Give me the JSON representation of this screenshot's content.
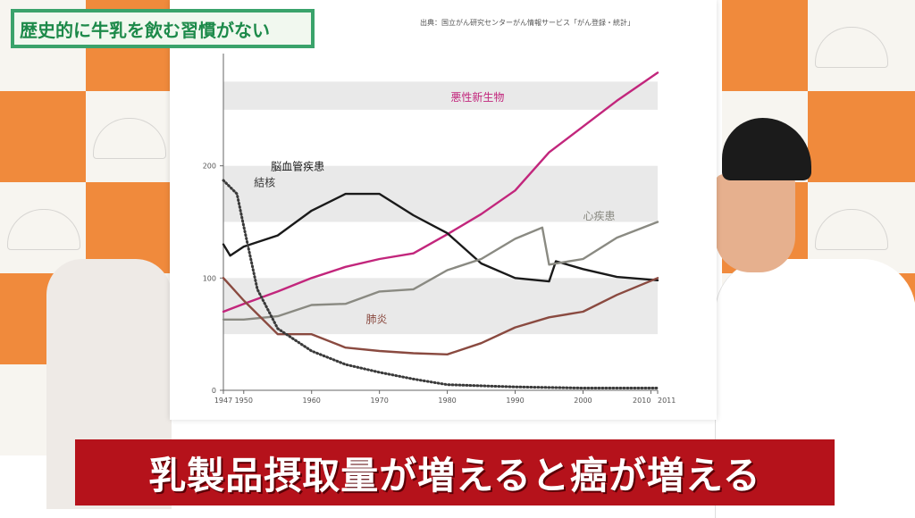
{
  "video": {
    "title_banner": "歴史的に牛乳を飲む習慣がない",
    "source_note": "出典：国立がん研究センターがん情報サービス「がん登録・統計」",
    "caption": "乳製品摂取量が増えると癌が増える"
  },
  "colors": {
    "cancer_line": "#c2267c",
    "cerebrovascular_line": "#1a1a1a",
    "heart_line": "#8a8a82",
    "pneumonia_line": "#8a4a40",
    "tuberculosis_line": "#3a3a3a",
    "band": "#e9e9e9",
    "caption_bg": "#b5121b",
    "title_green": "#1d8a4a"
  },
  "chart_data": {
    "type": "line",
    "title": "",
    "xlabel": "",
    "ylabel": "",
    "xlim": [
      1947,
      2011
    ],
    "ylim": [
      0,
      300
    ],
    "x_ticks": [
      {
        "value": 1947,
        "label": "1947"
      },
      {
        "value": 1950,
        "label": "1950"
      },
      {
        "value": 1960,
        "label": "1960"
      },
      {
        "value": 1970,
        "label": "1970"
      },
      {
        "value": 1980,
        "label": "1980"
      },
      {
        "value": 1990,
        "label": "1990"
      },
      {
        "value": 2000,
        "label": "2000"
      },
      {
        "value": 2010,
        "label": "2010"
      },
      {
        "value": 2011,
        "label": "2011"
      }
    ],
    "y_ticks": [
      {
        "value": 0,
        "label": "0"
      },
      {
        "value": 100,
        "label": "100"
      },
      {
        "value": 200,
        "label": "200"
      }
    ],
    "bands": [
      [
        250,
        275
      ],
      [
        150,
        200
      ],
      [
        50,
        100
      ]
    ],
    "series": [
      {
        "name": "悪性新生物",
        "color_key": "cancer_line",
        "style": "solid",
        "points": [
          [
            1947,
            70
          ],
          [
            1950,
            77
          ],
          [
            1955,
            88
          ],
          [
            1960,
            100
          ],
          [
            1965,
            110
          ],
          [
            1970,
            117
          ],
          [
            1975,
            122
          ],
          [
            1980,
            139
          ],
          [
            1985,
            157
          ],
          [
            1990,
            178
          ],
          [
            1995,
            212
          ],
          [
            2000,
            235
          ],
          [
            2005,
            258
          ],
          [
            2011,
            283
          ]
        ]
      },
      {
        "name": "脳血管疾患",
        "color_key": "cerebrovascular_line",
        "style": "solid",
        "points": [
          [
            1947,
            130
          ],
          [
            1948,
            120
          ],
          [
            1950,
            128
          ],
          [
            1955,
            138
          ],
          [
            1960,
            160
          ],
          [
            1965,
            175
          ],
          [
            1970,
            175
          ],
          [
            1975,
            156
          ],
          [
            1980,
            140
          ],
          [
            1985,
            113
          ],
          [
            1990,
            100
          ],
          [
            1995,
            97
          ],
          [
            1996,
            115
          ],
          [
            2000,
            108
          ],
          [
            2005,
            101
          ],
          [
            2011,
            98
          ]
        ]
      },
      {
        "name": "心疾患",
        "color_key": "heart_line",
        "style": "solid",
        "points": [
          [
            1947,
            63
          ],
          [
            1950,
            63
          ],
          [
            1955,
            66
          ],
          [
            1960,
            76
          ],
          [
            1965,
            77
          ],
          [
            1970,
            88
          ],
          [
            1975,
            90
          ],
          [
            1980,
            107
          ],
          [
            1985,
            117
          ],
          [
            1990,
            135
          ],
          [
            1994,
            145
          ],
          [
            1995,
            112
          ],
          [
            2000,
            117
          ],
          [
            2005,
            136
          ],
          [
            2011,
            150
          ]
        ]
      },
      {
        "name": "肺炎",
        "color_key": "pneumonia_line",
        "style": "solid",
        "points": [
          [
            1947,
            100
          ],
          [
            1950,
            80
          ],
          [
            1955,
            50
          ],
          [
            1960,
            50
          ],
          [
            1965,
            38
          ],
          [
            1970,
            35
          ],
          [
            1975,
            33
          ],
          [
            1980,
            32
          ],
          [
            1985,
            42
          ],
          [
            1990,
            56
          ],
          [
            1995,
            65
          ],
          [
            2000,
            70
          ],
          [
            2005,
            85
          ],
          [
            2011,
            100
          ]
        ]
      },
      {
        "name": "結核",
        "color_key": "tuberculosis_line",
        "style": "dotted",
        "points": [
          [
            1947,
            187
          ],
          [
            1949,
            175
          ],
          [
            1950,
            146
          ],
          [
            1952,
            90
          ],
          [
            1955,
            55
          ],
          [
            1960,
            35
          ],
          [
            1965,
            23
          ],
          [
            1970,
            16
          ],
          [
            1975,
            10
          ],
          [
            1980,
            5
          ],
          [
            1990,
            3
          ],
          [
            2000,
            2
          ],
          [
            2011,
            2
          ]
        ]
      }
    ],
    "labels": [
      {
        "text": "悪性新生物",
        "series": "悪性新生物",
        "at": [
          1980.5,
          258
        ]
      },
      {
        "text": "脳血管疾患",
        "series": "脳血管疾患",
        "at": [
          1954,
          196
        ]
      },
      {
        "text": "心疾患",
        "series": "心疾患",
        "at": [
          2000,
          152
        ]
      },
      {
        "text": "肺炎",
        "series": "肺炎",
        "at": [
          1968,
          60
        ]
      },
      {
        "text": "結核",
        "series": "結核",
        "at": [
          1951.5,
          182
        ]
      }
    ],
    "grid": false,
    "legend": "none"
  }
}
